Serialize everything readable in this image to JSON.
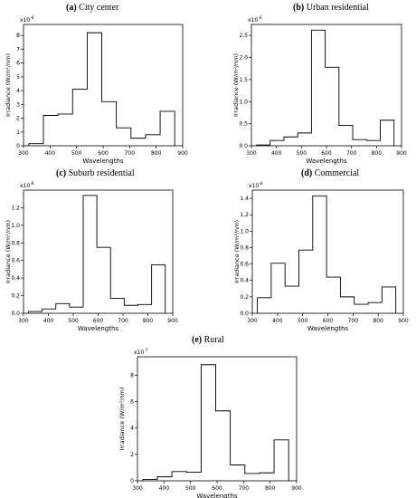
{
  "chart_data": [
    {
      "type": "histogram",
      "panel_letter": "(a)",
      "title": "City center",
      "xlabel": "Wavelengths",
      "ylabel": "Irradiance (W/m²/nm)",
      "y_multiplier": "x10",
      "y_exponent": "-6",
      "xlim": [
        300,
        900
      ],
      "ylim": [
        0,
        8.8
      ],
      "xticks": [
        300,
        400,
        500,
        600,
        700,
        800,
        900
      ],
      "yticks": [
        0,
        1,
        2,
        3,
        4,
        5,
        6,
        7,
        8
      ],
      "bin_edges": [
        320,
        375,
        430,
        485,
        540,
        595,
        650,
        705,
        760,
        815,
        870
      ],
      "values": [
        0.15,
        2.2,
        2.3,
        4.1,
        8.2,
        3.2,
        1.3,
        0.55,
        0.8,
        2.5
      ]
    },
    {
      "type": "histogram",
      "panel_letter": "(b)",
      "title": "Urban residential",
      "xlabel": "Wavelengths",
      "ylabel": "Irradiance (W/m²/nm)",
      "y_multiplier": "x10",
      "y_exponent": "-6",
      "xlim": [
        300,
        900
      ],
      "ylim": [
        0,
        2.75
      ],
      "xticks": [
        300,
        400,
        500,
        600,
        700,
        800,
        900
      ],
      "yticks": [
        0.0,
        0.5,
        1.0,
        1.5,
        2.0,
        2.5
      ],
      "ytick_labels": [
        "0.0",
        "0.5",
        "1.0",
        "1.5",
        "2.0",
        "2.5"
      ],
      "bin_edges": [
        320,
        375,
        430,
        485,
        540,
        595,
        650,
        705,
        760,
        815,
        870
      ],
      "values": [
        0.02,
        0.12,
        0.2,
        0.29,
        2.62,
        1.78,
        0.46,
        0.14,
        0.12,
        0.58
      ]
    },
    {
      "type": "histogram",
      "panel_letter": "(c)",
      "title": "Suburb residential",
      "xlabel": "Wavelengths",
      "ylabel": "Irradiance (W/m²/nm)",
      "y_multiplier": "x10",
      "y_exponent": "-6",
      "xlim": [
        300,
        900
      ],
      "ylim": [
        0,
        1.4
      ],
      "xticks": [
        300,
        400,
        500,
        600,
        700,
        800,
        900
      ],
      "yticks": [
        0.0,
        0.2,
        0.4,
        0.6,
        0.8,
        1.0,
        1.2
      ],
      "ytick_labels": [
        "0.0",
        "0.2",
        "0.4",
        "0.6",
        "0.8",
        "1.0",
        "1.2"
      ],
      "bin_edges": [
        320,
        375,
        430,
        485,
        540,
        595,
        650,
        705,
        760,
        815,
        870
      ],
      "values": [
        0.02,
        0.05,
        0.11,
        0.07,
        1.34,
        0.75,
        0.17,
        0.09,
        0.1,
        0.55
      ]
    },
    {
      "type": "histogram",
      "panel_letter": "(d)",
      "title": "Commercial",
      "xlabel": "Wavelengths",
      "ylabel": "Irradiance (W/m²/nm)",
      "y_multiplier": "x10",
      "y_exponent": "-6",
      "xlim": [
        300,
        900
      ],
      "ylim": [
        0,
        1.5
      ],
      "xticks": [
        300,
        400,
        500,
        600,
        700,
        800,
        900
      ],
      "yticks": [
        0.0,
        0.2,
        0.4,
        0.6,
        0.8,
        1.0,
        1.2,
        1.4
      ],
      "ytick_labels": [
        "0.0",
        "0.2",
        "0.4",
        "0.6",
        "0.8",
        "1.0",
        "1.2",
        "1.4"
      ],
      "bin_edges": [
        320,
        375,
        430,
        485,
        540,
        595,
        650,
        705,
        760,
        815,
        870
      ],
      "values": [
        0.19,
        0.61,
        0.33,
        0.77,
        1.43,
        0.44,
        0.2,
        0.11,
        0.13,
        0.32
      ]
    },
    {
      "type": "histogram",
      "panel_letter": "(e)",
      "title": "Rural",
      "xlabel": "Wavelengths",
      "ylabel": "Irradiance (W/m²/nm)",
      "y_multiplier": "x10",
      "y_exponent": "-7",
      "xlim": [
        300,
        900
      ],
      "ylim": [
        0,
        9.4
      ],
      "xticks": [
        300,
        400,
        500,
        600,
        700,
        800,
        900
      ],
      "yticks": [
        0,
        2,
        4,
        6,
        8
      ],
      "bin_edges": [
        320,
        375,
        430,
        485,
        540,
        595,
        650,
        705,
        760,
        815,
        870
      ],
      "values": [
        0.1,
        0.3,
        0.7,
        0.65,
        8.8,
        5.3,
        1.2,
        0.55,
        0.6,
        3.1
      ]
    }
  ]
}
